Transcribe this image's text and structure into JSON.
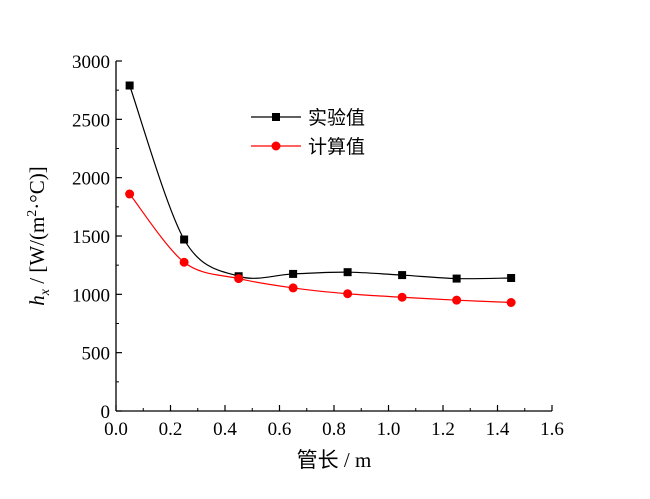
{
  "chart_data": {
    "type": "line",
    "xlabel": "管长 / m",
    "ylabel_parts": {
      "symbol": "h",
      "subscript": "x",
      "unit_prefix": " / [W/(m",
      "superscript": "2",
      "unit_suffix": "·°C)]"
    },
    "xlim": [
      0.0,
      1.6
    ],
    "ylim": [
      0,
      3000
    ],
    "x_ticks": [
      "0.0",
      "0.2",
      "0.4",
      "0.6",
      "0.8",
      "1.0",
      "1.2",
      "1.4",
      "1.6"
    ],
    "y_ticks": [
      "0",
      "500",
      "1000",
      "1500",
      "2000",
      "2500",
      "3000"
    ],
    "x_tick_values": [
      0.0,
      0.2,
      0.4,
      0.6,
      0.8,
      1.0,
      1.2,
      1.4,
      1.6
    ],
    "y_tick_values": [
      0,
      500,
      1000,
      1500,
      2000,
      2500,
      3000
    ],
    "x": [
      0.05,
      0.25,
      0.45,
      0.65,
      0.85,
      1.05,
      1.25,
      1.45
    ],
    "legend_position": "top-center",
    "grid": false,
    "series": [
      {
        "name": "实验值",
        "color": "#000000",
        "marker": "square",
        "values": [
          2790,
          1470,
          1155,
          1175,
          1190,
          1165,
          1135,
          1140
        ]
      },
      {
        "name": "计算值",
        "color": "#ff0000",
        "marker": "circle",
        "values": [
          1860,
          1275,
          1135,
          1055,
          1005,
          975,
          950,
          930
        ]
      }
    ]
  }
}
